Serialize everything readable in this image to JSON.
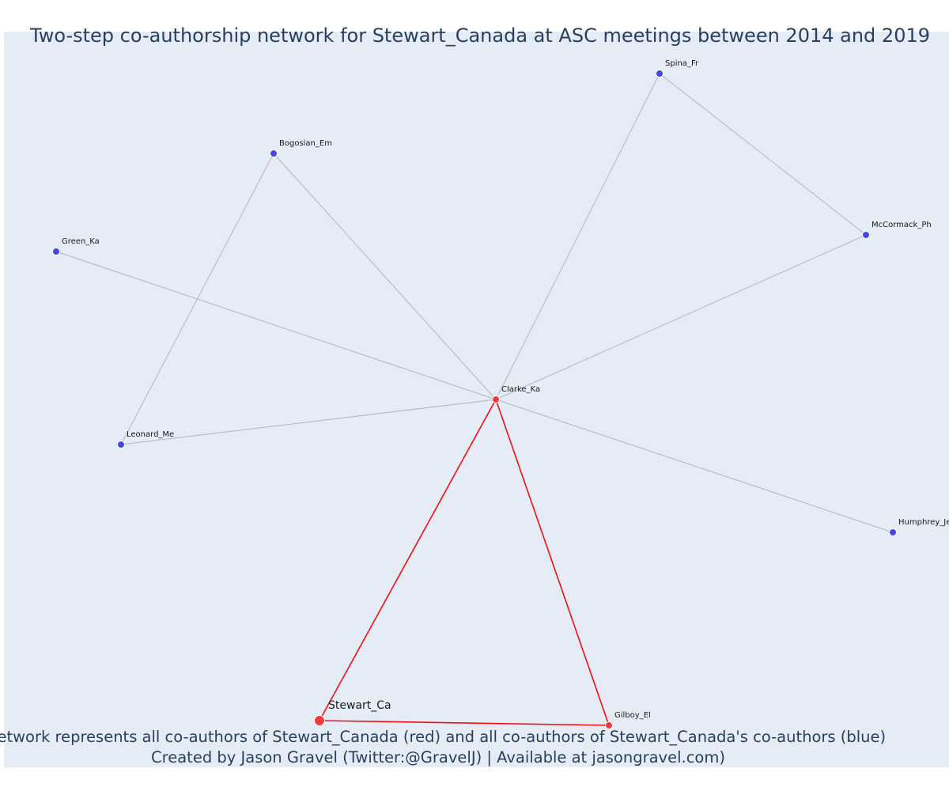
{
  "title": "Two-step co-authorship network for Stewart_Canada at ASC meetings between 2014 and 2019",
  "caption_line1": "Network represents all co-authors of Stewart_Canada (red) and all co-authors of Stewart_Canada's co-authors (blue)",
  "caption_line2": "Created by Jason Gravel (Twitter:@GravelJ) | Available at jasongravel.com)",
  "colors": {
    "background": "#e5ecf6",
    "title_text": "#2a3f5f",
    "red_node": "#ef3b3b",
    "blue_node": "#4646e6",
    "red_edge": "#ee1111",
    "gray_edge": "#b3b3c3"
  },
  "nodes": [
    {
      "id": "stewart",
      "label": "Stewart_Ca",
      "group": "red",
      "focal": true
    },
    {
      "id": "clarke",
      "label": "Clarke_Ka",
      "group": "red"
    },
    {
      "id": "gilboy",
      "label": "Gilboy_El",
      "group": "red"
    },
    {
      "id": "spina",
      "label": "Spina_Fr",
      "group": "blue"
    },
    {
      "id": "bogosian",
      "label": "Bogosian_Em",
      "group": "blue"
    },
    {
      "id": "green",
      "label": "Green_Ka",
      "group": "blue"
    },
    {
      "id": "mccormack",
      "label": "McCormack_Ph",
      "group": "blue"
    },
    {
      "id": "leonard",
      "label": "Leonard_Me",
      "group": "blue"
    },
    {
      "id": "humphrey",
      "label": "Humphrey_Je",
      "group": "blue"
    }
  ],
  "edges": [
    {
      "from": "clarke",
      "to": "green",
      "type": "gray"
    },
    {
      "from": "clarke",
      "to": "bogosian",
      "type": "gray"
    },
    {
      "from": "clarke",
      "to": "leonard",
      "type": "gray"
    },
    {
      "from": "clarke",
      "to": "spina",
      "type": "gray"
    },
    {
      "from": "clarke",
      "to": "mccormack",
      "type": "gray"
    },
    {
      "from": "clarke",
      "to": "humphrey",
      "type": "gray"
    },
    {
      "from": "bogosian",
      "to": "leonard",
      "type": "gray"
    },
    {
      "from": "spina",
      "to": "mccormack",
      "type": "gray"
    },
    {
      "from": "stewart",
      "to": "clarke",
      "type": "red"
    },
    {
      "from": "clarke",
      "to": "gilboy",
      "type": "red"
    },
    {
      "from": "stewart",
      "to": "gilboy",
      "type": "red"
    }
  ]
}
